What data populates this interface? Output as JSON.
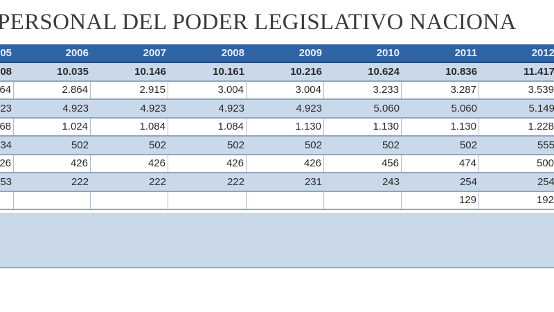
{
  "title": "PERSONAL DEL PODER LEGISLATIVO NACIONA",
  "table": {
    "header": [
      "05",
      "2006",
      "2007",
      "2008",
      "2009",
      "2010",
      "2011",
      "2012"
    ],
    "rows": [
      [
        "08",
        "10.035",
        "10.146",
        "10.161",
        "10.216",
        "10.624",
        "10.836",
        "11.417"
      ],
      [
        "64",
        "2.864",
        "2.915",
        "3.004",
        "3.004",
        "3.233",
        "3.287",
        "3.539"
      ],
      [
        "23",
        "4.923",
        "4.923",
        "4.923",
        "4.923",
        "5.060",
        "5.060",
        "5.149"
      ],
      [
        "68",
        "1.024",
        "1.084",
        "1.084",
        "1.130",
        "1.130",
        "1.130",
        "1.228"
      ],
      [
        "34",
        "502",
        "502",
        "502",
        "502",
        "502",
        "502",
        "555"
      ],
      [
        "26",
        "426",
        "426",
        "426",
        "426",
        "456",
        "474",
        "500"
      ],
      [
        "53",
        "222",
        "222",
        "222",
        "231",
        "243",
        "254",
        "254"
      ],
      [
        "",
        "",
        "",
        "",
        "",
        "",
        "129",
        "192"
      ]
    ]
  },
  "colors": {
    "header": "#2f64a6",
    "band": "#c9d9ea"
  }
}
